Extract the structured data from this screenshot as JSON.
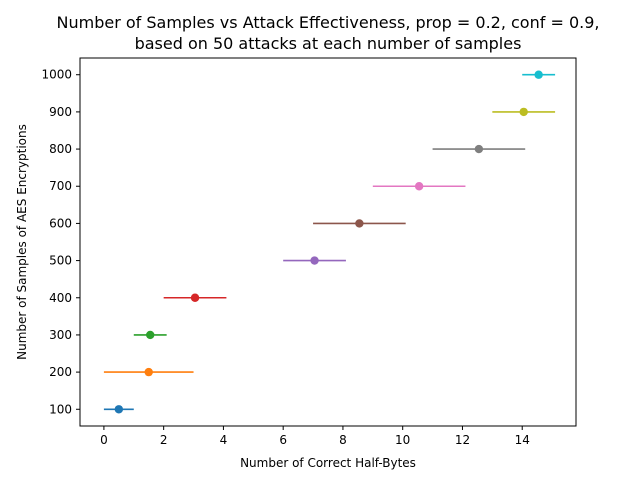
{
  "chart_data": {
    "type": "scatter",
    "title": "Number of Samples vs Attack Effectiveness, prop = 0.2, conf = 0.9,",
    "subtitle": "based on 50 attacks at each number of samples",
    "xlabel": "Number of Correct Half-Bytes",
    "ylabel": "Number of Samples of AES Encryptions",
    "xlim": [
      -0.8,
      15.8
    ],
    "ylim": [
      55,
      1045
    ],
    "xticks": [
      0,
      2,
      4,
      6,
      8,
      10,
      12,
      14
    ],
    "yticks": [
      100,
      200,
      300,
      400,
      500,
      600,
      700,
      800,
      900,
      1000
    ],
    "grid": false,
    "error_bars": "horizontal",
    "series": [
      {
        "y": 100,
        "x": 0.5,
        "xmin": 0.0,
        "xmax": 1.0,
        "color": "#1f77b4"
      },
      {
        "y": 200,
        "x": 1.5,
        "xmin": 0.0,
        "xmax": 3.0,
        "color": "#ff7f0e"
      },
      {
        "y": 300,
        "x": 1.55,
        "xmin": 1.0,
        "xmax": 2.1,
        "color": "#2ca02c"
      },
      {
        "y": 400,
        "x": 3.05,
        "xmin": 2.0,
        "xmax": 4.1,
        "color": "#d62728"
      },
      {
        "y": 500,
        "x": 7.05,
        "xmin": 6.0,
        "xmax": 8.1,
        "color": "#9467bd"
      },
      {
        "y": 600,
        "x": 8.55,
        "xmin": 7.0,
        "xmax": 10.1,
        "color": "#8c564b"
      },
      {
        "y": 700,
        "x": 10.55,
        "xmin": 9.0,
        "xmax": 12.1,
        "color": "#e377c2"
      },
      {
        "y": 800,
        "x": 12.55,
        "xmin": 11.0,
        "xmax": 14.1,
        "color": "#7f7f7f"
      },
      {
        "y": 900,
        "x": 14.05,
        "xmin": 13.0,
        "xmax": 15.1,
        "color": "#bcbd22"
      },
      {
        "y": 1000,
        "x": 14.55,
        "xmin": 14.0,
        "xmax": 15.1,
        "color": "#17becf"
      }
    ]
  }
}
